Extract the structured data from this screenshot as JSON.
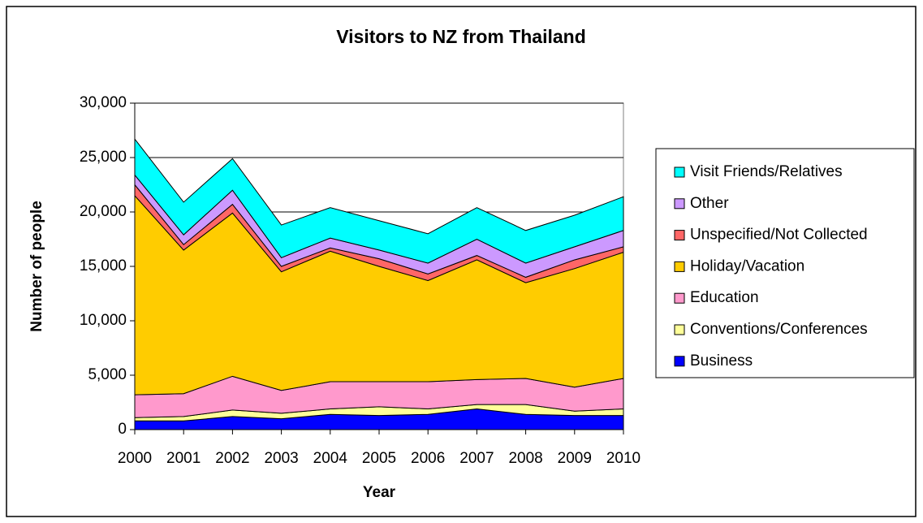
{
  "chart_data": {
    "type": "stacked_area",
    "title": "Visitors to NZ from Thailand",
    "x_label": "Year",
    "y_label": "Number of people",
    "categories": [
      "2000",
      "2001",
      "2002",
      "2003",
      "2004",
      "2005",
      "2006",
      "2007",
      "2008",
      "2009",
      "2010"
    ],
    "series": [
      {
        "name": "Business",
        "color": "#0000ff",
        "values": [
          800,
          800,
          1200,
          1000,
          1400,
          1300,
          1400,
          1900,
          1400,
          1300,
          1300
        ]
      },
      {
        "name": "Conventions/Conferences",
        "color": "#ffff99",
        "values": [
          300,
          400,
          600,
          500,
          500,
          800,
          500,
          400,
          900,
          400,
          600
        ]
      },
      {
        "name": "Education",
        "color": "#ff99cc",
        "values": [
          2100,
          2100,
          3100,
          2100,
          2500,
          2300,
          2500,
          2300,
          2400,
          2200,
          2800
        ]
      },
      {
        "name": "Holiday/Vacation",
        "color": "#ffcc00",
        "values": [
          18300,
          13200,
          15000,
          10900,
          12000,
          10600,
          9300,
          11000,
          8800,
          10900,
          11600
        ]
      },
      {
        "name": "Unspecified/Not Collected",
        "color": "#ff6666",
        "values": [
          1000,
          500,
          800,
          500,
          300,
          700,
          600,
          400,
          500,
          800,
          500
        ]
      },
      {
        "name": "Other",
        "color": "#cc99ff",
        "values": [
          900,
          900,
          1300,
          800,
          900,
          800,
          1000,
          1500,
          1300,
          1200,
          1500
        ]
      },
      {
        "name": "Visit Friends/Relatives",
        "color": "#00ffff",
        "values": [
          3300,
          3000,
          2900,
          3000,
          2800,
          2700,
          2700,
          2900,
          3000,
          2900,
          3100
        ]
      }
    ],
    "ylim": [
      0,
      30000
    ],
    "yticks": [
      0,
      {
        "value": 5000,
        "label": "5,000"
      },
      {
        "value": 10000,
        "label": "10,000"
      },
      {
        "value": 15000,
        "label": "15,000"
      },
      {
        "value": 20000,
        "label": "20,000"
      },
      {
        "value": 25000,
        "label": "25,000"
      },
      {
        "value": 30000,
        "label": "30,000"
      }
    ],
    "grid": true,
    "legend": "right"
  }
}
